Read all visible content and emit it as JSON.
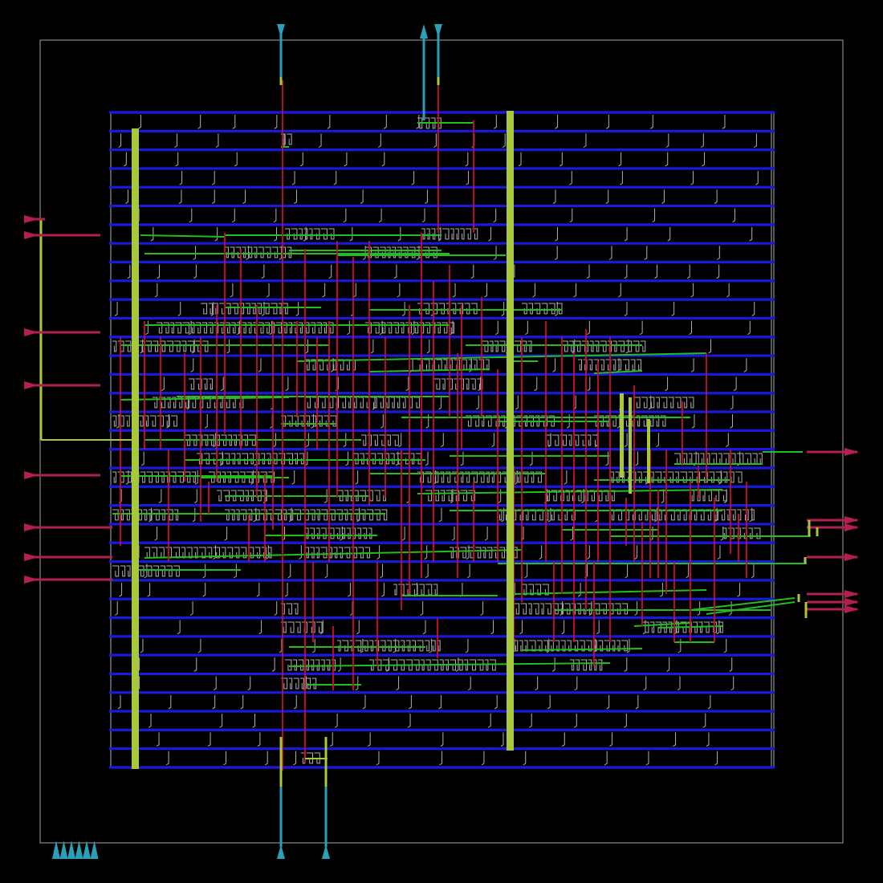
{
  "view": {
    "description_visible_text": "",
    "layers": {
      "die_outline_color": "#8a8a8a",
      "power_rail_color": "#1a1adf",
      "power_strap_color": "#a8c83c",
      "metal_vertical_color": "#c8102e",
      "metal_horizontal_color": "#1fbf1f",
      "cell_outline_color": "#b0b0b0",
      "pin_input_color": "#b3204e",
      "pin_top_color": "#2a9fb8"
    }
  },
  "pins": {
    "top": [
      {
        "name": "pin-top-1",
        "direction": "in"
      },
      {
        "name": "pin-top-2",
        "direction": "out"
      },
      {
        "name": "pin-top-3",
        "direction": "in"
      }
    ],
    "bottom": [
      {
        "name": "pin-bottom-1",
        "direction": "in"
      },
      {
        "name": "pin-bottom-2",
        "direction": "in"
      }
    ],
    "left_count": 8,
    "right_count": 7,
    "corner_marker_count": 6
  },
  "rails": {
    "row_count": 36
  },
  "cell_rows": {
    "count": 35
  }
}
